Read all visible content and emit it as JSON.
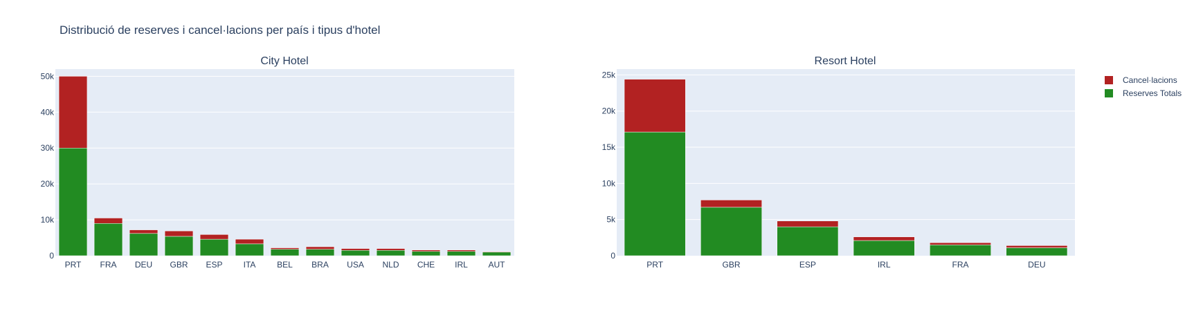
{
  "figure": {
    "title": "Distribució de reserves i cancel·lacions per país i tipus d'hotel"
  },
  "legend": {
    "items": [
      {
        "label": "Cancel·lacions",
        "color": "#b22222"
      },
      {
        "label": "Reserves Totals",
        "color": "#228b22"
      }
    ]
  },
  "colors": {
    "plot_bg": "#e5ecf6",
    "grid": "#ffffff",
    "text": "#2a3f5f",
    "cancellations": "#b22222",
    "bookings": "#228b22"
  },
  "chart_data": [
    {
      "type": "bar",
      "barmode": "stack",
      "title": "City Hotel",
      "categories": [
        "PRT",
        "FRA",
        "DEU",
        "GBR",
        "ESP",
        "ITA",
        "BEL",
        "BRA",
        "USA",
        "NLD",
        "CHE",
        "IRL",
        "AUT"
      ],
      "series": [
        {
          "name": "Reserves Totals",
          "color": "#228b22",
          "values": [
            30000,
            9000,
            6200,
            5400,
            4600,
            3300,
            1800,
            1800,
            1500,
            1500,
            1200,
            1200,
            1000
          ]
        },
        {
          "name": "Cancel·lacions",
          "color": "#b22222",
          "values": [
            20000,
            1500,
            1000,
            1500,
            1300,
            1300,
            400,
            700,
            500,
            500,
            400,
            400,
            150
          ]
        }
      ],
      "ylim": [
        0,
        52000
      ],
      "yticks": [
        0,
        10000,
        20000,
        30000,
        40000,
        50000
      ],
      "ytick_labels": [
        "0",
        "10k",
        "20k",
        "30k",
        "40k",
        "50k"
      ],
      "grid": true
    },
    {
      "type": "bar",
      "barmode": "stack",
      "title": "Resort Hotel",
      "categories": [
        "PRT",
        "GBR",
        "ESP",
        "IRL",
        "FRA",
        "DEU"
      ],
      "series": [
        {
          "name": "Reserves Totals",
          "color": "#228b22",
          "values": [
            17100,
            6700,
            4000,
            2100,
            1500,
            1100
          ]
        },
        {
          "name": "Cancel·lacions",
          "color": "#b22222",
          "values": [
            7300,
            1000,
            800,
            500,
            300,
            300
          ]
        }
      ],
      "ylim": [
        0,
        25800
      ],
      "yticks": [
        0,
        5000,
        10000,
        15000,
        20000,
        25000
      ],
      "ytick_labels": [
        "0",
        "5k",
        "10k",
        "15k",
        "20k",
        "25k"
      ],
      "grid": true
    }
  ]
}
